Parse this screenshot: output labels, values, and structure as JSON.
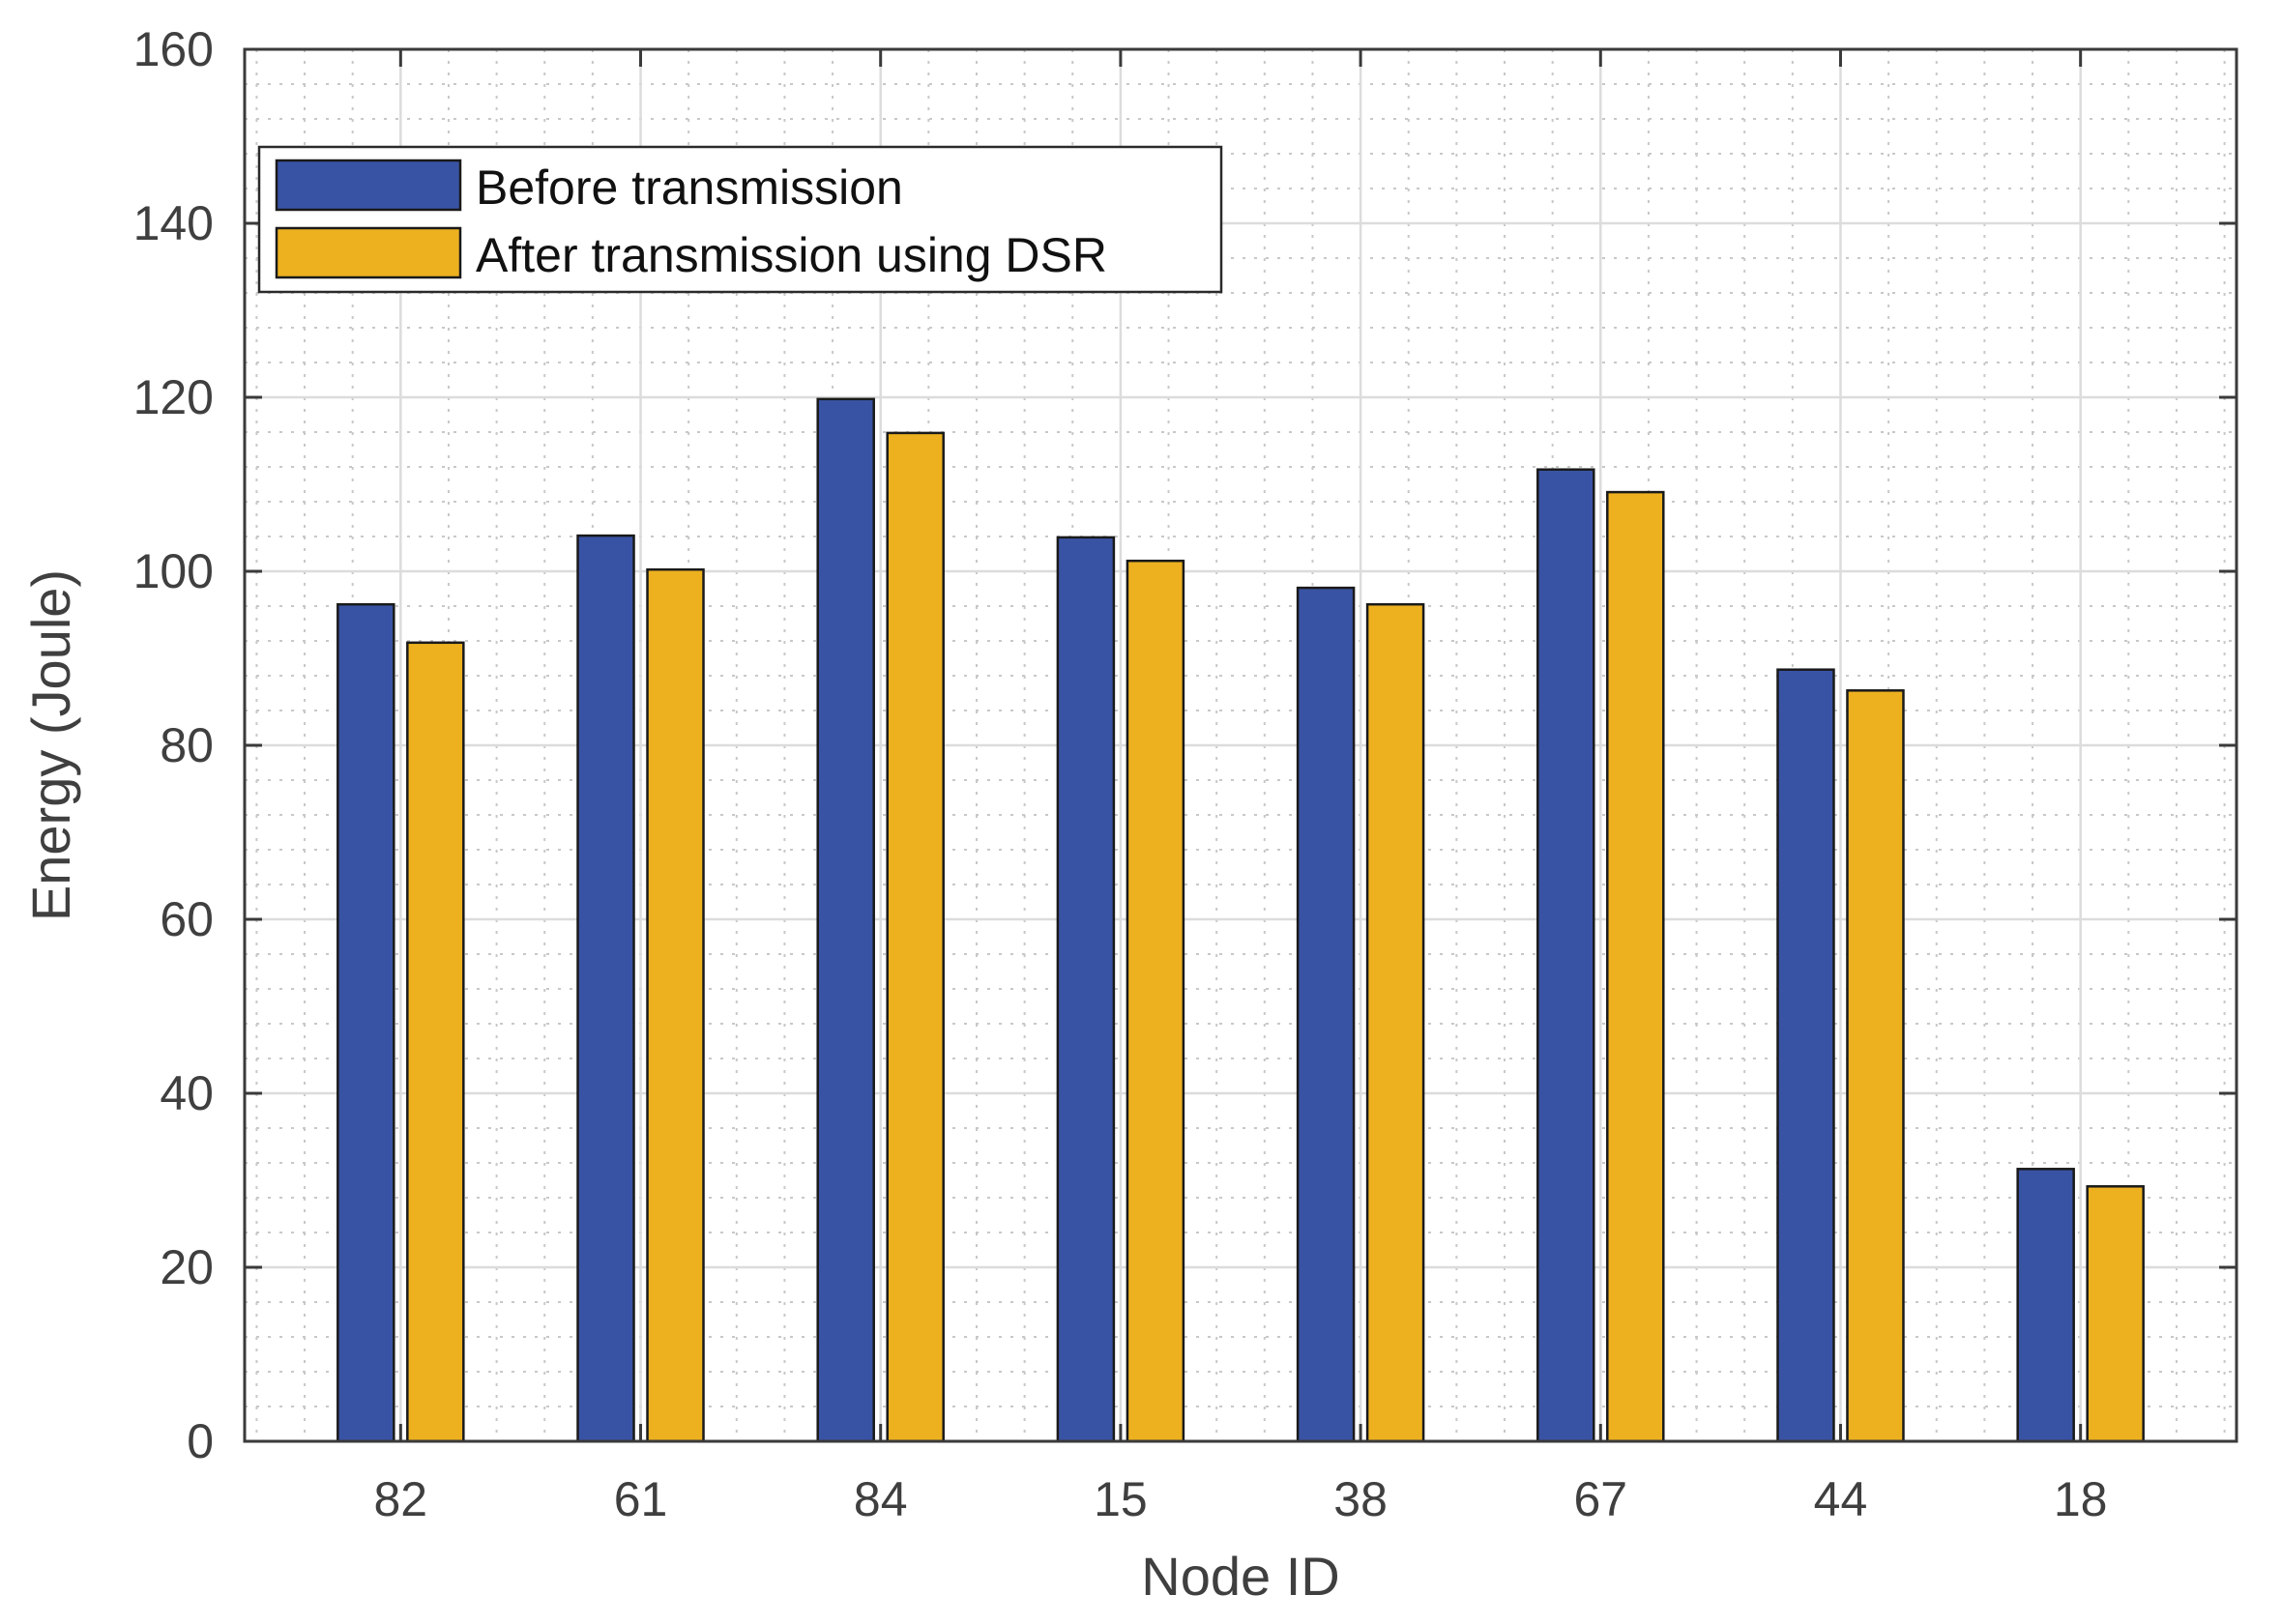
{
  "chart_data": {
    "type": "bar",
    "title": "",
    "xlabel": "Node ID",
    "ylabel": "Energy (Joule)",
    "categories": [
      "82",
      "61",
      "84",
      "15",
      "38",
      "67",
      "44",
      "18"
    ],
    "ylim": [
      0,
      160
    ],
    "yticks": [
      0,
      20,
      40,
      60,
      80,
      100,
      120,
      140,
      160
    ],
    "grid": true,
    "minor_grid": true,
    "legend_position": "top-left",
    "series": [
      {
        "name": "Before transmission",
        "color": "#3953a4",
        "values": [
          96.2,
          104.1,
          119.8,
          103.9,
          98.1,
          111.7,
          88.7,
          31.3
        ]
      },
      {
        "name": "After transmission using DSR",
        "color": "#edb120",
        "values": [
          91.8,
          100.2,
          115.9,
          101.2,
          96.2,
          109.1,
          86.3,
          29.3
        ]
      }
    ]
  }
}
